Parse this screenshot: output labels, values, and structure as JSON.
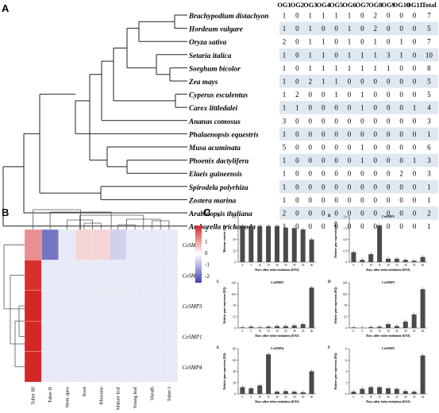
{
  "panels": {
    "a": "A",
    "b": "B",
    "c": "C"
  },
  "table": {
    "headers": [
      "OG1",
      "OG2",
      "OG3",
      "OG4",
      "OG5",
      "OG6",
      "OG7",
      "OG8",
      "OG9",
      "OG10",
      "OG11",
      "Total"
    ],
    "rows": [
      {
        "species": "Brachypodium distachyon",
        "values": [
          1,
          0,
          1,
          1,
          1,
          1,
          0,
          2,
          0,
          0,
          0,
          7
        ]
      },
      {
        "species": "Hordeum vulgare",
        "values": [
          1,
          0,
          1,
          0,
          0,
          1,
          0,
          2,
          0,
          0,
          0,
          5
        ]
      },
      {
        "species": "Oryza sativa",
        "values": [
          2,
          0,
          1,
          1,
          0,
          1,
          0,
          1,
          0,
          1,
          0,
          7
        ]
      },
      {
        "species": "Setaria italica",
        "values": [
          1,
          0,
          1,
          1,
          0,
          1,
          1,
          1,
          3,
          1,
          0,
          10
        ]
      },
      {
        "species": "Sorghum bicolor",
        "values": [
          1,
          0,
          1,
          1,
          1,
          1,
          1,
          1,
          1,
          0,
          0,
          8
        ]
      },
      {
        "species": "Zea mays",
        "values": [
          1,
          0,
          2,
          1,
          1,
          0,
          0,
          0,
          0,
          0,
          0,
          5
        ]
      },
      {
        "species": "Cyperus esculentus",
        "values": [
          1,
          2,
          0,
          0,
          1,
          0,
          1,
          0,
          0,
          0,
          0,
          5
        ]
      },
      {
        "species": "Carex littledalei",
        "values": [
          1,
          1,
          0,
          0,
          0,
          0,
          1,
          0,
          0,
          0,
          1,
          4
        ]
      },
      {
        "species": "Ananas comosus",
        "values": [
          3,
          0,
          0,
          0,
          0,
          0,
          0,
          0,
          0,
          0,
          0,
          3
        ]
      },
      {
        "species": "Phalaenopsis equestris",
        "values": [
          1,
          0,
          0,
          0,
          0,
          0,
          0,
          0,
          0,
          0,
          0,
          1
        ]
      },
      {
        "species": "Musa acuminata",
        "values": [
          5,
          0,
          0,
          0,
          0,
          0,
          1,
          0,
          0,
          0,
          0,
          6
        ]
      },
      {
        "species": "Phoenix dactylifera",
        "values": [
          1,
          0,
          0,
          0,
          0,
          0,
          1,
          0,
          0,
          0,
          1,
          3
        ]
      },
      {
        "species": "Elaeis guineensis",
        "values": [
          1,
          0,
          0,
          0,
          0,
          0,
          0,
          0,
          0,
          2,
          0,
          3
        ]
      },
      {
        "species": "Spirodela polyrhiza",
        "values": [
          1,
          0,
          0,
          0,
          0,
          0,
          0,
          0,
          0,
          0,
          0,
          1
        ]
      },
      {
        "species": "Zostera marina",
        "values": [
          1,
          0,
          0,
          0,
          0,
          0,
          0,
          0,
          0,
          0,
          0,
          1
        ]
      },
      {
        "species": "Arabidopsis thaliana",
        "values": [
          2,
          0,
          0,
          0,
          0,
          0,
          0,
          0,
          0,
          0,
          0,
          2
        ]
      },
      {
        "species": "Amborella trichopoda",
        "values": [
          1,
          0,
          0,
          0,
          0,
          0,
          0,
          0,
          0,
          0,
          0,
          1
        ]
      }
    ]
  },
  "heatmap": {
    "columns": [
      "Tuber III",
      "Tuber II",
      "Stem apex",
      "Root",
      "Rhizome",
      "Mature leaf",
      "Young leaf",
      "Sheath",
      "Tuber I"
    ],
    "rows": [
      "CeSMP5",
      "CeSMP2",
      "CeSMP3",
      "CeSMP1",
      "CeSMP4"
    ],
    "values": [
      [
        1.3,
        -1.8,
        0.1,
        0.5,
        0.5,
        -0.6,
        -0.3,
        -0.3,
        -0.2
      ],
      [
        2.4,
        0.4,
        -0.35,
        -0.35,
        -0.35,
        -0.35,
        -0.35,
        -0.35,
        -0.35
      ],
      [
        2.5,
        -0.15,
        -0.3,
        -0.3,
        -0.3,
        -0.3,
        -0.3,
        -0.3,
        -0.3
      ],
      [
        2.5,
        -0.3,
        -0.3,
        -0.3,
        -0.35,
        -0.3,
        -0.3,
        -0.3,
        -0.3
      ],
      [
        2.5,
        -0.3,
        -0.3,
        -0.3,
        -0.3,
        -0.3,
        -0.3,
        -0.3,
        -0.3
      ]
    ],
    "scale_ticks": [
      "2",
      "1",
      "0",
      "-1",
      "-2"
    ],
    "colors": {
      "high": "#d62728",
      "mid": "#ffffff",
      "low": "#4040b0"
    }
  },
  "chart_data": [
    {
      "type": "bar",
      "panel": "a",
      "title": "",
      "ylabel": "Moisture content (%)",
      "xlabel": "Days after tuber initiation (DAI)",
      "categories": [
        "0",
        "5",
        "10",
        "15",
        "20",
        "25",
        "30",
        "35",
        "40"
      ],
      "values": [
        80,
        80,
        80,
        80,
        80,
        76,
        75,
        72,
        50
      ],
      "ylim": [
        0,
        100
      ]
    },
    {
      "type": "bar",
      "panel": "b",
      "title": "CeSMP1",
      "ylabel": "Relative gene expression (RQ)",
      "xlabel": "Days after tuber initiation (DAI)",
      "categories": [
        "0",
        "5",
        "10",
        "15",
        "20",
        "25",
        "30",
        "35",
        "40"
      ],
      "values": [
        0.35,
        0.08,
        0.28,
        1.3,
        0.12,
        0.12,
        0.08,
        0.05,
        0.18
      ],
      "ylim": [
        0,
        1.6
      ]
    },
    {
      "type": "bar",
      "panel": "c",
      "title": "CeSMP2",
      "ylabel": "Relative gene expression (RQ)",
      "xlabel": "Days after tuber initiation (DAI)",
      "categories": [
        "0",
        "5",
        "10",
        "15",
        "20",
        "25",
        "30",
        "35",
        "40"
      ],
      "values": [
        2,
        4,
        2,
        4,
        6,
        6,
        8,
        12,
        125
      ],
      "ylim": [
        0,
        140
      ]
    },
    {
      "type": "bar",
      "panel": "d",
      "title": "CeSMP3",
      "ylabel": "Relative gene expression (RQ)",
      "xlabel": "Days after tuber initiation (DAI)",
      "categories": [
        "0",
        "5",
        "10",
        "15",
        "20",
        "25",
        "30",
        "35",
        "40"
      ],
      "values": [
        2,
        1,
        3,
        4,
        12,
        6,
        20,
        42,
        120
      ],
      "ylim": [
        0,
        140
      ]
    },
    {
      "type": "bar",
      "panel": "e",
      "title": "CeSMP4",
      "ylabel": "Relative gene expression (RQ)",
      "xlabel": "Days after tuber initiation (DAI)",
      "categories": [
        "0",
        "5",
        "10",
        "15",
        "20",
        "25",
        "30",
        "35",
        "40"
      ],
      "values": [
        12,
        10,
        15,
        70,
        4,
        5,
        4,
        3,
        40
      ],
      "ylim": [
        0,
        80
      ]
    },
    {
      "type": "bar",
      "panel": "f",
      "title": "CeSMP5",
      "ylabel": "Relative gene expression (RQ)",
      "xlabel": "Days after tuber initiation (DAI)",
      "categories": [
        "0",
        "5",
        "10",
        "15",
        "20",
        "25",
        "30",
        "35",
        "40"
      ],
      "values": [
        0.4,
        0.9,
        1.2,
        1.2,
        1.0,
        0.9,
        0.5,
        0.4,
        6.8
      ],
      "ylim": [
        0,
        8
      ]
    }
  ]
}
